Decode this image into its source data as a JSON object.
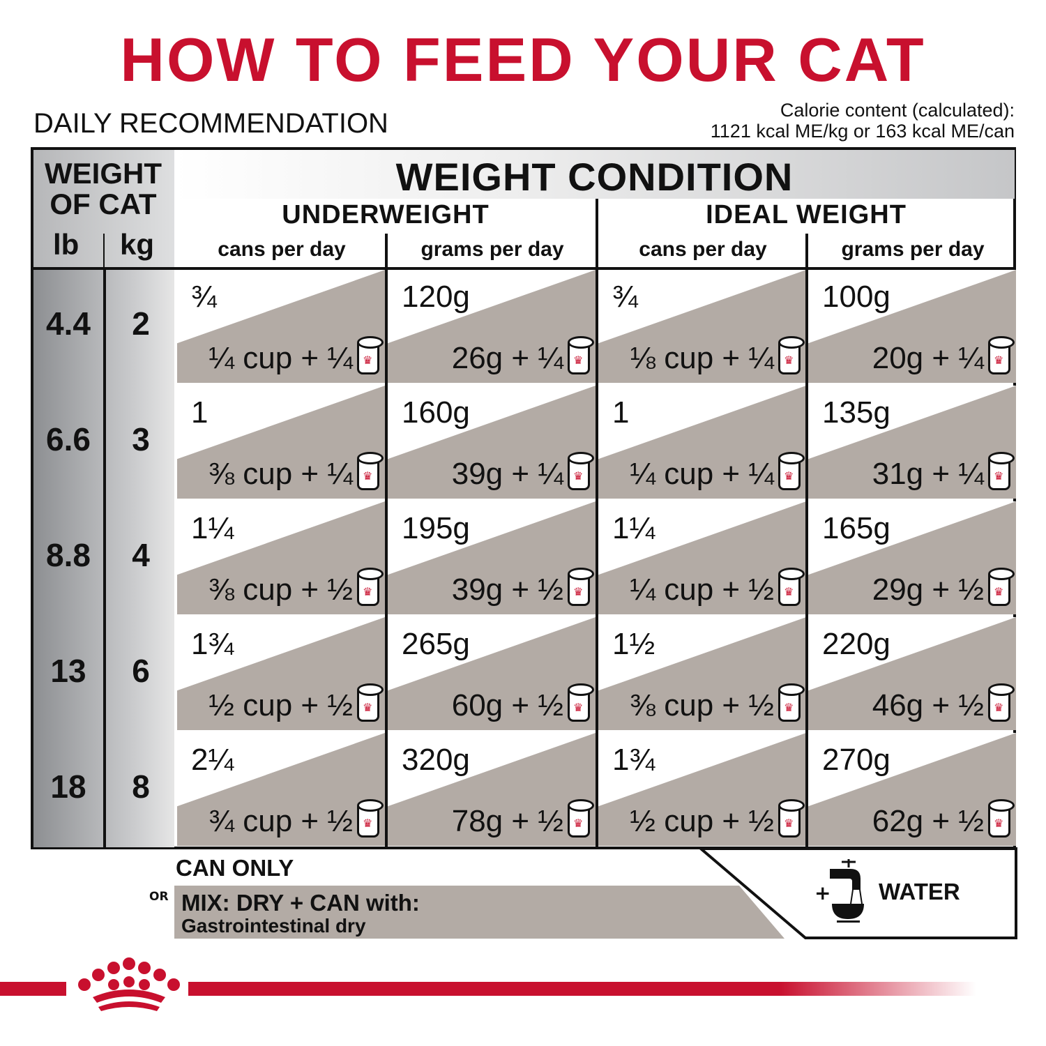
{
  "title": "HOW TO FEED YOUR CAT",
  "subtitle": "DAILY RECOMMENDATION",
  "calorie": {
    "line1": "Calorie content (calculated):",
    "line2": "1121 kcal ME/kg or 163 kcal ME/can"
  },
  "table": {
    "weight_of_cat": "WEIGHT OF CAT",
    "lb": "lb",
    "kg": "kg",
    "condition_title": "WEIGHT CONDITION",
    "groups": [
      {
        "label": "UNDERWEIGHT",
        "cans": "cans per day",
        "grams": "grams per day"
      },
      {
        "label": "IDEAL WEIGHT",
        "cans": "cans per day",
        "grams": "grams per day"
      }
    ],
    "rows": [
      {
        "lb": "4.4",
        "kg": "2",
        "cells": [
          {
            "main": "¾",
            "mix": "¼ cup + ¼"
          },
          {
            "main": "120g",
            "mix": "26g + ¼"
          },
          {
            "main": "¾",
            "mix": "⅛ cup + ¼"
          },
          {
            "main": "100g",
            "mix": "20g + ¼"
          }
        ]
      },
      {
        "lb": "6.6",
        "kg": "3",
        "cells": [
          {
            "main": "1",
            "mix": "⅜ cup + ¼"
          },
          {
            "main": "160g",
            "mix": "39g + ¼"
          },
          {
            "main": "1",
            "mix": "¼ cup + ¼"
          },
          {
            "main": "135g",
            "mix": "31g + ¼"
          }
        ]
      },
      {
        "lb": "8.8",
        "kg": "4",
        "cells": [
          {
            "main": "1¼",
            "mix": "⅜ cup + ½"
          },
          {
            "main": "195g",
            "mix": "39g + ½"
          },
          {
            "main": "1¼",
            "mix": "¼ cup + ½"
          },
          {
            "main": "165g",
            "mix": "29g + ½"
          }
        ]
      },
      {
        "lb": "13",
        "kg": "6",
        "cells": [
          {
            "main": "1¾",
            "mix": "½ cup + ½"
          },
          {
            "main": "265g",
            "mix": "60g + ½"
          },
          {
            "main": "1½",
            "mix": "⅜ cup + ½"
          },
          {
            "main": "220g",
            "mix": "46g + ½"
          }
        ]
      },
      {
        "lb": "18",
        "kg": "8",
        "cells": [
          {
            "main": "2¼",
            "mix": "¾ cup + ½"
          },
          {
            "main": "320g",
            "mix": "78g + ½"
          },
          {
            "main": "1¾",
            "mix": "½ cup + ½"
          },
          {
            "main": "270g",
            "mix": "62g + ½"
          }
        ]
      }
    ]
  },
  "legend": {
    "can_only": "CAN ONLY",
    "or": "OR",
    "mix_line1": "MIX: DRY + CAN with:",
    "mix_line2": "Gastrointestinal dry",
    "water_plus": "+",
    "water": "WATER"
  },
  "icons": {
    "can": "can-icon",
    "water": "faucet-bowl-icon",
    "logo": "royal-canin-crown-logo"
  },
  "colors": {
    "accent": "#c8102e",
    "shade": "#b3aba5"
  }
}
